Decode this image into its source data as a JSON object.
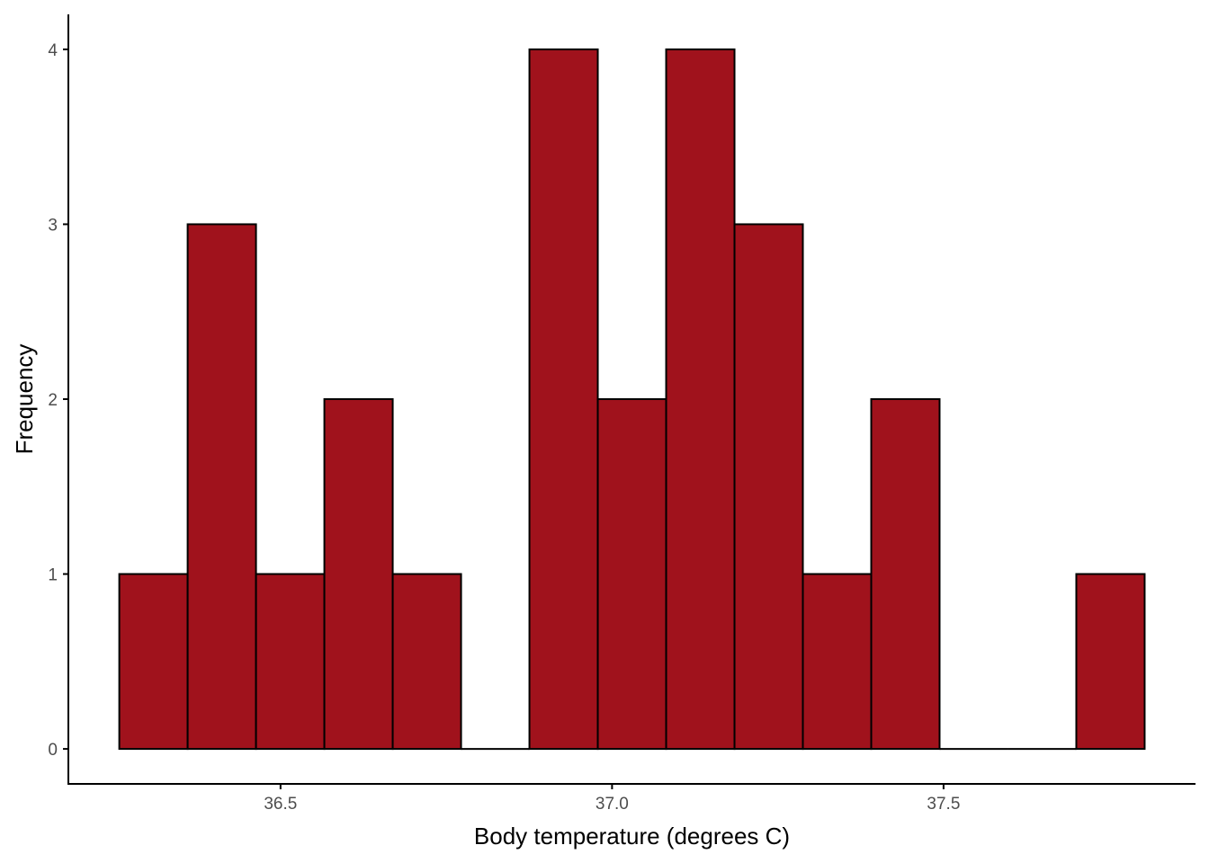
{
  "chart_data": {
    "type": "bar",
    "title": "",
    "xlabel": "Body temperature (degrees C)",
    "ylabel": "Frequency",
    "bin_width": 0.1031,
    "bins": [
      {
        "start": 36.2568,
        "end": 36.3599,
        "count": 1
      },
      {
        "start": 36.3599,
        "end": 36.463,
        "count": 3
      },
      {
        "start": 36.463,
        "end": 36.5661,
        "count": 1
      },
      {
        "start": 36.5661,
        "end": 36.6692,
        "count": 2
      },
      {
        "start": 36.6692,
        "end": 36.7723,
        "count": 1
      },
      {
        "start": 36.7723,
        "end": 36.8754,
        "count": 0
      },
      {
        "start": 36.8754,
        "end": 36.9785,
        "count": 4
      },
      {
        "start": 36.9785,
        "end": 37.0816,
        "count": 2
      },
      {
        "start": 37.0816,
        "end": 37.1847,
        "count": 4
      },
      {
        "start": 37.1847,
        "end": 37.2878,
        "count": 3
      },
      {
        "start": 37.2878,
        "end": 37.3909,
        "count": 1
      },
      {
        "start": 37.3909,
        "end": 37.494,
        "count": 2
      },
      {
        "start": 37.494,
        "end": 37.5971,
        "count": 0
      },
      {
        "start": 37.5971,
        "end": 37.7002,
        "count": 0
      },
      {
        "start": 37.7002,
        "end": 37.8033,
        "count": 1
      }
    ],
    "xlim": [
      36.18,
      37.88
    ],
    "ylim": [
      -0.2,
      4.2
    ],
    "x_ticks": [
      {
        "value": 36.5,
        "label": "36.5"
      },
      {
        "value": 37.0,
        "label": "37.0"
      },
      {
        "value": 37.5,
        "label": "37.5"
      }
    ],
    "y_ticks": [
      {
        "value": 0,
        "label": "0"
      },
      {
        "value": 1,
        "label": "1"
      },
      {
        "value": 2,
        "label": "2"
      },
      {
        "value": 3,
        "label": "3"
      },
      {
        "value": 4,
        "label": "4"
      }
    ],
    "grid": false,
    "legend": "none",
    "colors": {
      "bar_fill": "#A0121C",
      "bar_stroke": "#000000",
      "axis": "#000000",
      "tick_label": "#4D4D4D"
    }
  }
}
